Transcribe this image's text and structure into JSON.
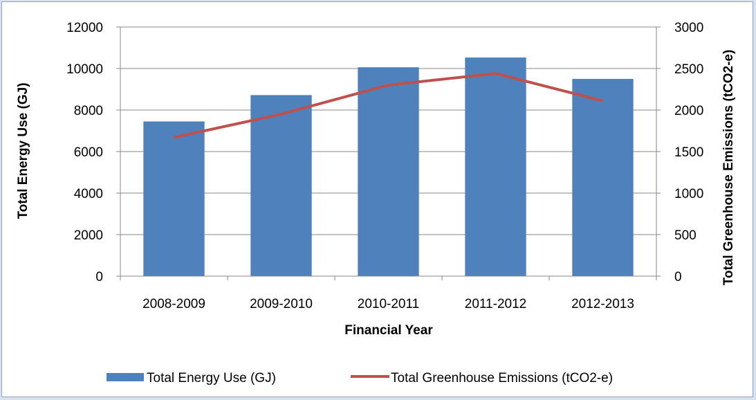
{
  "chart_data": {
    "type": "bar",
    "categories": [
      "2008-2009",
      "2009-2010",
      "2010-2011",
      "2011-2012",
      "2012-2013"
    ],
    "series": [
      {
        "name": "Total Energy Use (GJ)",
        "type": "bar",
        "axis": "left",
        "color": "#4f81bd",
        "values": [
          7450,
          8720,
          10060,
          10530,
          9500
        ]
      },
      {
        "name": "Total Greenhouse Emissions (tCO2-e)",
        "type": "line",
        "axis": "right",
        "color": "#c0504d",
        "values": [
          1670,
          1950,
          2300,
          2440,
          2110
        ]
      }
    ],
    "xlabel": "Financial Year",
    "ylabel": "Total Energy Use (GJ)",
    "y2label": "Total Greenhouse Emissions (tCO2-e)",
    "ylim": [
      0,
      12000
    ],
    "y2lim": [
      0,
      3000
    ],
    "yticks": [
      "0",
      "2000",
      "4000",
      "6000",
      "8000",
      "10000",
      "12000"
    ],
    "y2ticks": [
      "0",
      "500",
      "1000",
      "1500",
      "2000",
      "2500",
      "3000"
    ],
    "grid": true,
    "legend": "bottom"
  }
}
